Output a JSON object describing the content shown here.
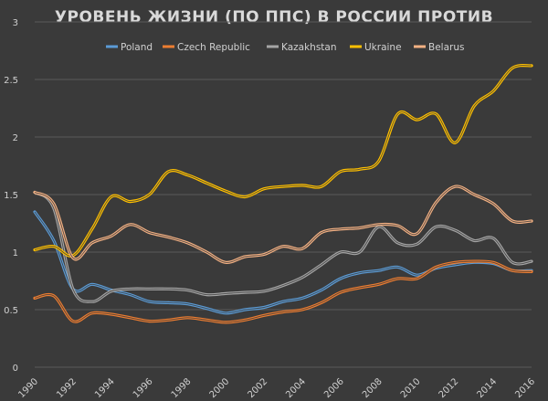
{
  "chart_data": {
    "type": "line",
    "title": "УРОВЕНЬ ЖИЗНИ (ПО ППС) В РОССИИ ПРОТИВ",
    "xlabel": "",
    "ylabel": "",
    "xlim": [
      1990,
      2016
    ],
    "ylim": [
      0,
      3
    ],
    "x_ticks": [
      "1990",
      "1992",
      "1994",
      "1996",
      "1998",
      "2000",
      "2002",
      "2004",
      "2006",
      "2008",
      "2010",
      "2012",
      "2014",
      "2016"
    ],
    "y_ticks": [
      "0",
      "0.5",
      "1",
      "1.5",
      "2",
      "2.5",
      "3"
    ],
    "grid": "horizontal",
    "legend": "top",
    "x": [
      1990,
      1991,
      1992,
      1993,
      1994,
      1995,
      1996,
      1997,
      1998,
      1999,
      2000,
      2001,
      2002,
      2003,
      2004,
      2005,
      2006,
      2007,
      2008,
      2009,
      2010,
      2011,
      2012,
      2013,
      2014,
      2015,
      2016
    ],
    "series": [
      {
        "name": "Poland",
        "color": "#5b9bd5",
        "values": [
          1.35,
          1.1,
          0.68,
          0.72,
          0.67,
          0.63,
          0.57,
          0.56,
          0.55,
          0.51,
          0.47,
          0.5,
          0.52,
          0.57,
          0.6,
          0.67,
          0.77,
          0.82,
          0.84,
          0.87,
          0.8,
          0.86,
          0.89,
          0.91,
          0.9,
          0.84,
          0.84
        ]
      },
      {
        "name": "Czech Republic",
        "color": "#ed7d31",
        "values": [
          0.6,
          0.62,
          0.4,
          0.47,
          0.46,
          0.43,
          0.4,
          0.41,
          0.43,
          0.41,
          0.39,
          0.41,
          0.45,
          0.48,
          0.5,
          0.56,
          0.65,
          0.69,
          0.72,
          0.77,
          0.77,
          0.87,
          0.91,
          0.92,
          0.91,
          0.84,
          0.83
        ]
      },
      {
        "name": "Kazakhstan",
        "color": "#a5a5a5",
        "values": [
          1.52,
          1.38,
          0.68,
          0.57,
          0.66,
          0.68,
          0.68,
          0.68,
          0.67,
          0.63,
          0.64,
          0.65,
          0.66,
          0.71,
          0.78,
          0.89,
          1.0,
          1.0,
          1.22,
          1.08,
          1.07,
          1.22,
          1.19,
          1.1,
          1.12,
          0.91,
          0.92
        ]
      },
      {
        "name": "Ukraine",
        "color": "#ffc000",
        "values": [
          1.02,
          1.05,
          0.97,
          1.2,
          1.48,
          1.44,
          1.5,
          1.7,
          1.67,
          1.6,
          1.53,
          1.48,
          1.55,
          1.57,
          1.58,
          1.57,
          1.7,
          1.72,
          1.79,
          2.2,
          2.15,
          2.2,
          1.95,
          2.27,
          2.4,
          2.6,
          2.62
        ]
      },
      {
        "name": "Belarus",
        "color": "#f4b183",
        "values": [
          1.52,
          1.42,
          0.95,
          1.08,
          1.14,
          1.24,
          1.17,
          1.13,
          1.08,
          1.0,
          0.91,
          0.96,
          0.98,
          1.05,
          1.03,
          1.17,
          1.2,
          1.21,
          1.24,
          1.23,
          1.16,
          1.43,
          1.57,
          1.5,
          1.42,
          1.27,
          1.27
        ]
      }
    ]
  }
}
